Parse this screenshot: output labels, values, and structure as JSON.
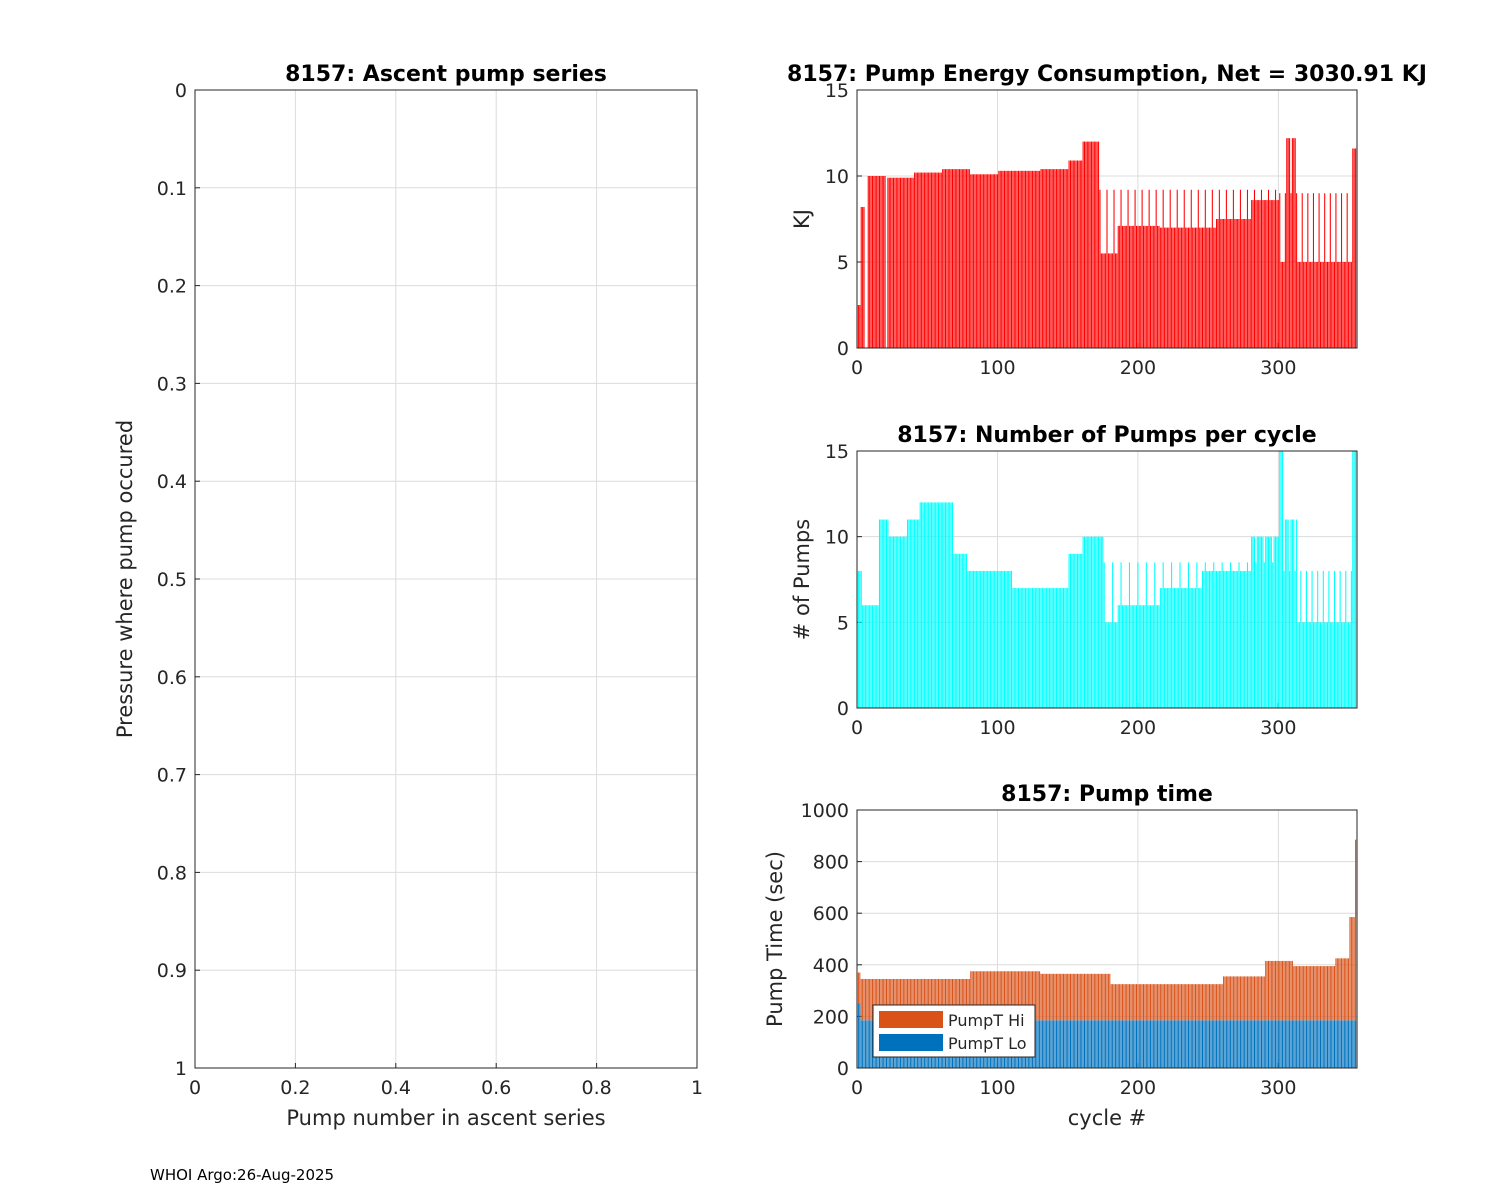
{
  "footer": "WHOI Argo:26-Aug-2025",
  "chart_data": [
    {
      "id": "ascent",
      "type": "scatter",
      "title": "8157: Ascent pump series",
      "xlabel": "Pump number in ascent series",
      "ylabel": "Pressure where pump occured",
      "xlim": [
        0,
        1
      ],
      "ylim": [
        0,
        1
      ],
      "y_reversed": true,
      "xticks": [
        "0",
        "0.2",
        "0.4",
        "0.6",
        "0.8",
        "1"
      ],
      "yticks": [
        "0",
        "0.1",
        "0.2",
        "0.3",
        "0.4",
        "0.5",
        "0.6",
        "0.7",
        "0.8",
        "0.9",
        "1"
      ],
      "grid": true,
      "series": []
    },
    {
      "id": "energy",
      "type": "bar",
      "title": "8157: Pump Energy Consumption,  Net = 3030.91 KJ",
      "xlabel": "",
      "ylabel": "KJ",
      "xlim": [
        0,
        356
      ],
      "ylim": [
        0,
        15
      ],
      "xticks": [
        "0",
        "100",
        "200",
        "300"
      ],
      "yticks": [
        "0",
        "5",
        "10",
        "15"
      ],
      "grid": true,
      "color": "#ff0000",
      "segments": [
        {
          "from": 0,
          "to": 2,
          "value": 2.5
        },
        {
          "from": 3,
          "to": 5,
          "value": 8.2
        },
        {
          "from": 8,
          "to": 20,
          "value": 10.0
        },
        {
          "from": 22,
          "to": 40,
          "value": 9.9
        },
        {
          "from": 41,
          "to": 60,
          "value": 10.2
        },
        {
          "from": 61,
          "to": 80,
          "value": 10.4
        },
        {
          "from": 81,
          "to": 100,
          "value": 10.1
        },
        {
          "from": 101,
          "to": 130,
          "value": 10.3
        },
        {
          "from": 131,
          "to": 150,
          "value": 10.4
        },
        {
          "from": 151,
          "to": 160,
          "value": 10.9
        },
        {
          "from": 161,
          "to": 172,
          "value": 12.0
        },
        {
          "from": 173,
          "to": 185,
          "value": 5.5
        },
        {
          "from": 186,
          "to": 215,
          "value": 7.1
        },
        {
          "from": 216,
          "to": 255,
          "value": 7.0
        },
        {
          "from": 256,
          "to": 280,
          "value": 7.5
        },
        {
          "from": 281,
          "to": 300,
          "value": 8.6
        },
        {
          "from": 301,
          "to": 304,
          "value": 5.0
        },
        {
          "from": 305,
          "to": 313,
          "value": 12.2
        },
        {
          "from": 314,
          "to": 352,
          "value": 5.0
        },
        {
          "from": 353,
          "to": 356,
          "value": 11.6
        }
      ],
      "spikes": [
        {
          "from": 173,
          "to": 300,
          "value": 9.2,
          "step": 5
        },
        {
          "from": 301,
          "to": 352,
          "value": 9.0,
          "step": 4
        }
      ]
    },
    {
      "id": "pumps",
      "type": "bar",
      "title": "8157: Number of Pumps per cycle",
      "xlabel": "",
      "ylabel": "# of Pumps",
      "xlim": [
        0,
        356
      ],
      "ylim": [
        0,
        15
      ],
      "xticks": [
        "0",
        "100",
        "200",
        "300"
      ],
      "yticks": [
        "0",
        "5",
        "10",
        "15"
      ],
      "grid": true,
      "color": "#00ffff",
      "segments": [
        {
          "from": 0,
          "to": 3,
          "value": 8
        },
        {
          "from": 4,
          "to": 15,
          "value": 6
        },
        {
          "from": 16,
          "to": 22,
          "value": 11
        },
        {
          "from": 23,
          "to": 35,
          "value": 10
        },
        {
          "from": 36,
          "to": 44,
          "value": 11
        },
        {
          "from": 45,
          "to": 68,
          "value": 12
        },
        {
          "from": 69,
          "to": 78,
          "value": 9
        },
        {
          "from": 79,
          "to": 110,
          "value": 8
        },
        {
          "from": 111,
          "to": 150,
          "value": 7
        },
        {
          "from": 151,
          "to": 160,
          "value": 9
        },
        {
          "from": 161,
          "to": 175,
          "value": 10
        },
        {
          "from": 176,
          "to": 185,
          "value": 5
        },
        {
          "from": 186,
          "to": 215,
          "value": 6
        },
        {
          "from": 216,
          "to": 245,
          "value": 7
        },
        {
          "from": 246,
          "to": 280,
          "value": 8
        },
        {
          "from": 281,
          "to": 300,
          "value": 10
        },
        {
          "from": 301,
          "to": 303,
          "value": 15
        },
        {
          "from": 304,
          "to": 313,
          "value": 11
        },
        {
          "from": 314,
          "to": 352,
          "value": 5
        },
        {
          "from": 353,
          "to": 356,
          "value": 15
        }
      ],
      "spikes": [
        {
          "from": 176,
          "to": 300,
          "value": 8.5,
          "step": 6
        },
        {
          "from": 304,
          "to": 352,
          "value": 8,
          "step": 4
        }
      ]
    },
    {
      "id": "pumptime",
      "type": "bar",
      "stacked": true,
      "title": "8157: Pump time",
      "xlabel": "cycle #",
      "ylabel": "Pump Time (sec)",
      "xlim": [
        0,
        356
      ],
      "ylim": [
        0,
        1000
      ],
      "xticks": [
        "0",
        "100",
        "200",
        "300"
      ],
      "yticks": [
        "0",
        "200",
        "400",
        "600",
        "800",
        "1000"
      ],
      "grid": true,
      "legend": "bottom-left",
      "series": [
        {
          "name": "PumpT Lo",
          "color": "#0072bd",
          "segments": [
            {
              "from": 0,
              "to": 2,
              "value": 250
            },
            {
              "from": 3,
              "to": 356,
              "value": 185
            }
          ]
        },
        {
          "name": "PumpT Hi",
          "color": "#d95319",
          "segments": [
            {
              "from": 0,
              "to": 2,
              "value": 120
            },
            {
              "from": 3,
              "to": 25,
              "value": 160
            },
            {
              "from": 26,
              "to": 80,
              "value": 160
            },
            {
              "from": 81,
              "to": 130,
              "value": 190
            },
            {
              "from": 131,
              "to": 180,
              "value": 180
            },
            {
              "from": 181,
              "to": 260,
              "value": 140
            },
            {
              "from": 261,
              "to": 290,
              "value": 170
            },
            {
              "from": 291,
              "to": 310,
              "value": 230
            },
            {
              "from": 311,
              "to": 340,
              "value": 210
            },
            {
              "from": 341,
              "to": 350,
              "value": 240
            },
            {
              "from": 351,
              "to": 354,
              "value": 400
            },
            {
              "from": 355,
              "to": 356,
              "value": 700
            }
          ]
        }
      ]
    }
  ]
}
